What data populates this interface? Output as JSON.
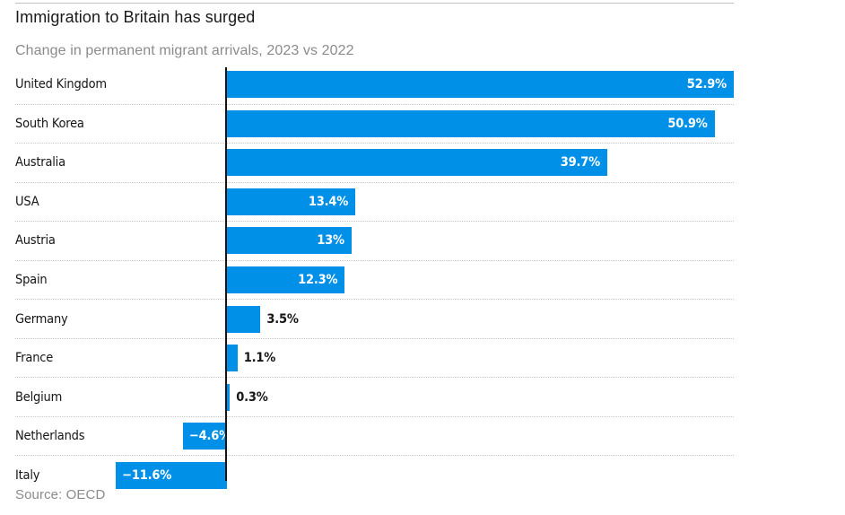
{
  "header": {
    "title": "Immigration to Britain has surged",
    "subtitle": "Change in permanent migrant arrivals, 2023 vs 2022"
  },
  "source_note": "Source: OECD",
  "chart_data": {
    "type": "bar",
    "orientation": "horizontal",
    "title": "Immigration to Britain has surged",
    "subtitle": "Change in permanent migrant arrivals, 2023 vs 2022",
    "xlabel": "",
    "ylabel": "",
    "value_suffix": "%",
    "categories": [
      "United Kingdom",
      "South Korea",
      "Australia",
      "USA",
      "Austria",
      "Spain",
      "Germany",
      "France",
      "Belgium",
      "Netherlands",
      "Italy"
    ],
    "values": [
      52.9,
      50.9,
      39.7,
      13.4,
      13,
      12.3,
      3.5,
      1.1,
      0.3,
      -4.6,
      -11.6
    ],
    "value_labels": [
      "52.9%",
      "50.9%",
      "39.7%",
      "13.4%",
      "13%",
      "12.3%",
      "3.5%",
      "1.1%",
      "0.3%",
      "−4.6%",
      "−11.6%"
    ],
    "label_inside": [
      true,
      true,
      true,
      true,
      true,
      true,
      false,
      false,
      false,
      true,
      true
    ],
    "xlim": [
      -22.1,
      52.9
    ],
    "bar_color": "#0090e8",
    "inside_label_color": "#ffffff",
    "outside_label_color": "#161616",
    "axis_color": "#141414",
    "grid": "dotted horizontal row separators",
    "legend": "none"
  }
}
